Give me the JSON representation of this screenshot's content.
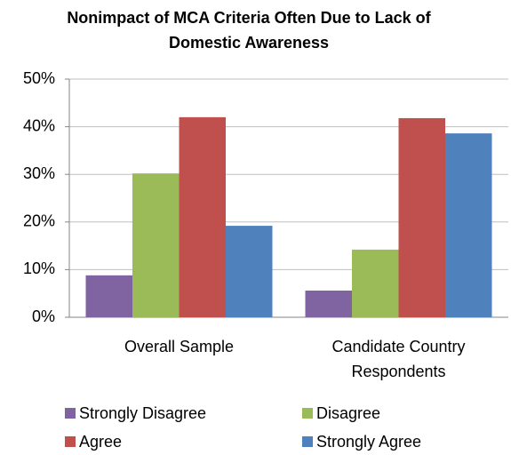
{
  "chart_data": {
    "type": "bar",
    "title": "Nonimpact of MCA Criteria Often Due to Lack of Domestic Awareness",
    "categories": [
      "Overall Sample",
      "Candidate Country Respondents"
    ],
    "series": [
      {
        "name": "Strongly Disagree",
        "color": "#8064a2",
        "values": [
          8.8,
          5.6
        ]
      },
      {
        "name": "Disagree",
        "color": "#9bbb59",
        "values": [
          30.2,
          14.2
        ]
      },
      {
        "name": "Agree",
        "color": "#c0504d",
        "values": [
          42.0,
          41.8
        ]
      },
      {
        "name": "Strongly Agree",
        "color": "#4f81bd",
        "values": [
          19.2,
          38.6
        ]
      }
    ],
    "ylim": [
      0,
      50
    ],
    "yticks": [
      {
        "value": 0,
        "label": "0%"
      },
      {
        "value": 10,
        "label": "10%"
      },
      {
        "value": 20,
        "label": "20%"
      },
      {
        "value": 30,
        "label": "30%"
      },
      {
        "value": 40,
        "label": "40%"
      },
      {
        "value": 50,
        "label": "50%"
      }
    ],
    "grid": true
  }
}
